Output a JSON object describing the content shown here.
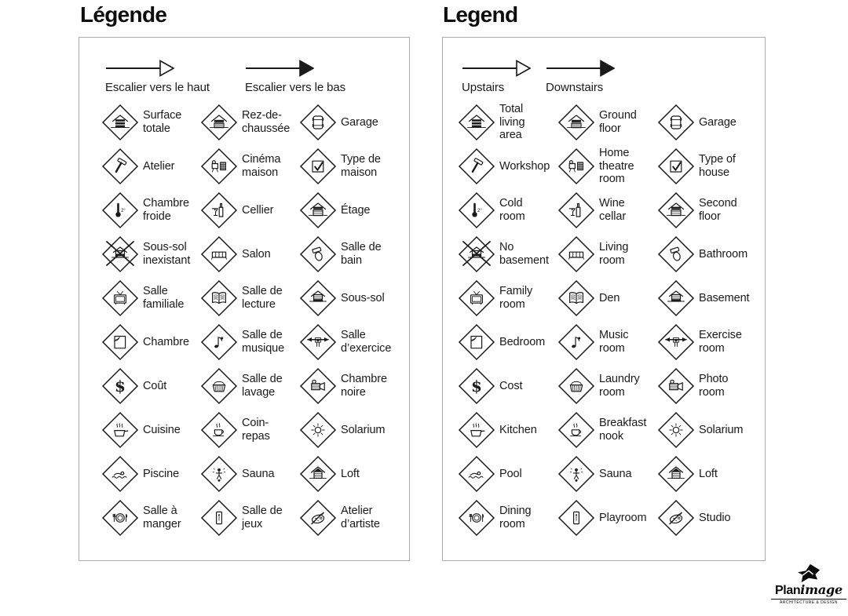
{
  "colors": {
    "ink": "#1a1a1a",
    "panel_border": "#ababab",
    "background": "#ffffff"
  },
  "panels": [
    {
      "title": "Légende",
      "arrows": [
        {
          "icon": "stairs-up-arrow-icon",
          "style": "outline",
          "label": "Escalier vers le haut"
        },
        {
          "icon": "stairs-down-arrow-icon",
          "style": "filled",
          "label": "Escalier vers le bas"
        }
      ],
      "items": [
        {
          "icon": "house-stripes-icon",
          "label": "Surface\ntotale"
        },
        {
          "icon": "ground-floor-icon",
          "label": "Rez-de-\nchaussée"
        },
        {
          "icon": "garage-icon",
          "label": "Garage"
        },
        {
          "icon": "hammer-icon",
          "label": "Atelier"
        },
        {
          "icon": "home-theatre-icon",
          "label": "Cinéma\nmaison"
        },
        {
          "icon": "house-check-icon",
          "label": "Type de\nmaison"
        },
        {
          "icon": "thermometer-icon",
          "label": "Chambre\nfroide"
        },
        {
          "icon": "wine-icon",
          "label": "Cellier"
        },
        {
          "icon": "second-floor-icon",
          "label": "Étage"
        },
        {
          "icon": "no-basement-icon",
          "label": "Sous-sol\ninexistant"
        },
        {
          "icon": "sofa-icon",
          "label": "Salon"
        },
        {
          "icon": "toilet-icon",
          "label": "Salle de\nbain"
        },
        {
          "icon": "tv-icon",
          "label": "Salle\nfamiliale"
        },
        {
          "icon": "book-icon",
          "label": "Salle de\nlecture"
        },
        {
          "icon": "basement-icon",
          "label": "Sous-sol"
        },
        {
          "icon": "bed-icon",
          "label": "Chambre"
        },
        {
          "icon": "music-note-icon",
          "label": "Salle de\nmusique"
        },
        {
          "icon": "barbell-icon",
          "label": "Salle\nd’exercice"
        },
        {
          "icon": "dollar-icon",
          "label": "Coût"
        },
        {
          "icon": "laundry-basket-icon",
          "label": "Salle de\nlavage"
        },
        {
          "icon": "camera-icon",
          "label": "Chambre\nnoire"
        },
        {
          "icon": "cooking-pot-icon",
          "label": "Cuisine"
        },
        {
          "icon": "coffee-cup-icon",
          "label": "Coin-\nrepas"
        },
        {
          "icon": "sun-icon",
          "label": "Solarium"
        },
        {
          "icon": "swimmer-icon",
          "label": "Piscine"
        },
        {
          "icon": "sauna-icon",
          "label": "Sauna"
        },
        {
          "icon": "loft-icon",
          "label": "Loft"
        },
        {
          "icon": "dining-plate-icon",
          "label": "Salle à\nmanger"
        },
        {
          "icon": "playroom-icon",
          "label": "Salle de\njeux"
        },
        {
          "icon": "palette-icon",
          "label": "Atelier\nd’artiste"
        }
      ]
    },
    {
      "title": "Legend",
      "arrows": [
        {
          "icon": "stairs-up-arrow-icon",
          "style": "outline",
          "label": "Upstairs"
        },
        {
          "icon": "stairs-down-arrow-icon",
          "style": "filled",
          "label": "Downstairs"
        }
      ],
      "items": [
        {
          "icon": "house-stripes-icon",
          "label": "Total\nliving\narea"
        },
        {
          "icon": "ground-floor-icon",
          "label": "Ground\nfloor"
        },
        {
          "icon": "garage-icon",
          "label": "Garage"
        },
        {
          "icon": "hammer-icon",
          "label": "Workshop"
        },
        {
          "icon": "home-theatre-icon",
          "label": "Home\ntheatre\nroom"
        },
        {
          "icon": "house-check-icon",
          "label": "Type of\nhouse"
        },
        {
          "icon": "thermometer-icon",
          "label": "Cold\nroom"
        },
        {
          "icon": "wine-icon",
          "label": "Wine\ncellar"
        },
        {
          "icon": "second-floor-icon",
          "label": "Second\nfloor"
        },
        {
          "icon": "no-basement-icon",
          "label": "No\nbasement"
        },
        {
          "icon": "sofa-icon",
          "label": "Living\nroom"
        },
        {
          "icon": "toilet-icon",
          "label": "Bathroom"
        },
        {
          "icon": "tv-icon",
          "label": "Family\nroom"
        },
        {
          "icon": "book-icon",
          "label": "Den"
        },
        {
          "icon": "basement-icon",
          "label": "Basement"
        },
        {
          "icon": "bed-icon",
          "label": "Bedroom"
        },
        {
          "icon": "music-note-icon",
          "label": "Music\nroom"
        },
        {
          "icon": "barbell-icon",
          "label": "Exercise\nroom"
        },
        {
          "icon": "dollar-icon",
          "label": "Cost"
        },
        {
          "icon": "laundry-basket-icon",
          "label": "Laundry\nroom"
        },
        {
          "icon": "camera-icon",
          "label": "Photo\nroom"
        },
        {
          "icon": "cooking-pot-icon",
          "label": "Kitchen"
        },
        {
          "icon": "coffee-cup-icon",
          "label": "Breakfast\nnook"
        },
        {
          "icon": "sun-icon",
          "label": "Solarium"
        },
        {
          "icon": "swimmer-icon",
          "label": "Pool"
        },
        {
          "icon": "sauna-icon",
          "label": "Sauna"
        },
        {
          "icon": "loft-icon",
          "label": "Loft"
        },
        {
          "icon": "dining-plate-icon",
          "label": "Dining\nroom"
        },
        {
          "icon": "playroom-icon",
          "label": "Playroom"
        },
        {
          "icon": "palette-icon",
          "label": "Studio"
        }
      ]
    }
  ],
  "logo": {
    "brand_bold": "Plan",
    "brand_italic": "image",
    "tagline": "ARCHITECTURE & DESIGN",
    "mark": "planimage-mark-icon"
  }
}
